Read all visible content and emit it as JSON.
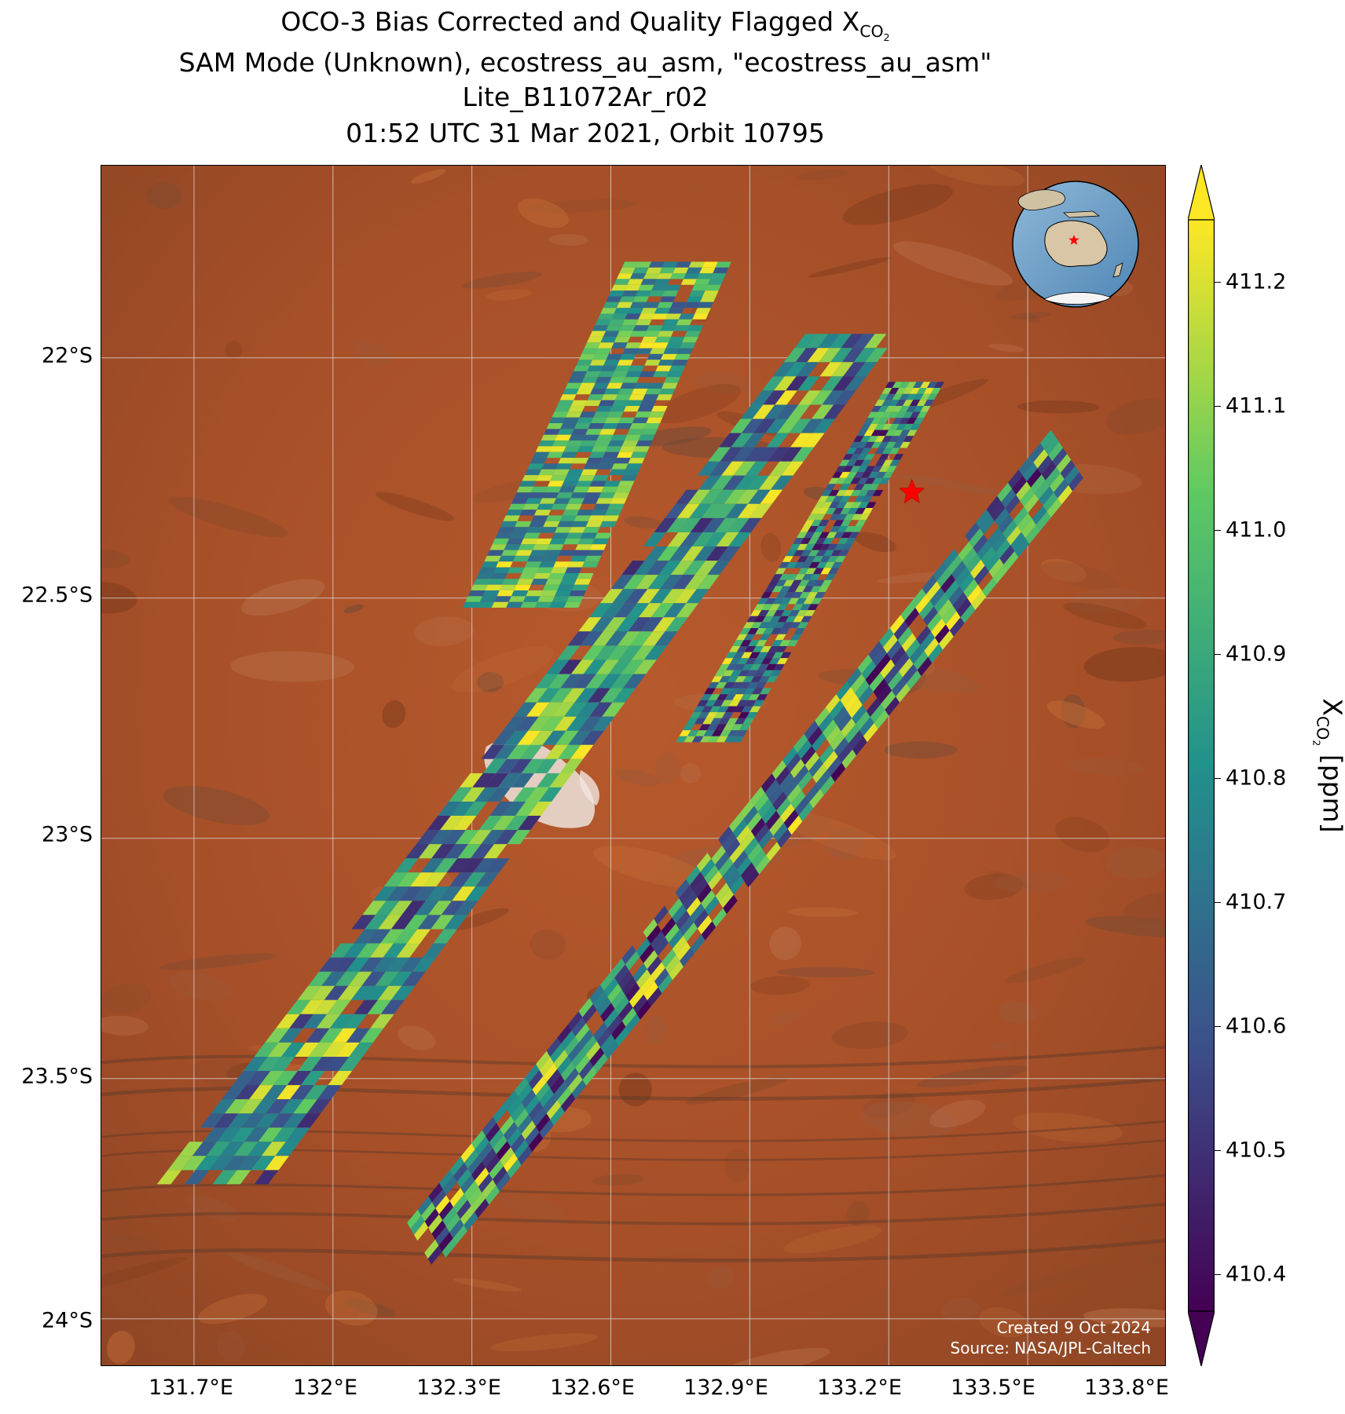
{
  "title": {
    "line1_prefix": "OCO-3 Bias Corrected and Quality Flagged X",
    "line1_sub": "CO",
    "line1_sub2": "2",
    "line2": "SAM Mode (Unknown), ecostress_au_asm, \"ecostress_au_asm\"",
    "line3": "Lite_B11072Ar_r02",
    "line4": "01:52 UTC 31 Mar 2021, Orbit 10795"
  },
  "map": {
    "latitude_ticks": [
      "22°S",
      "22.5°S",
      "23°S",
      "23.5°S",
      "24°S"
    ],
    "longitude_ticks": [
      "131.7°E",
      "132°E",
      "132.3°E",
      "132.6°E",
      "132.9°E",
      "133.2°E",
      "133.5°E",
      "133.8°E"
    ],
    "target_marker": "red star",
    "credit_line1": "Created 9 Oct 2024",
    "credit_line2": "Source: NASA/JPL-Caltech"
  },
  "colorbar": {
    "label_prefix": "X",
    "label_sub": "CO",
    "label_sub2": "2",
    "label_suffix": " [ppm]",
    "ticks": [
      "410.4",
      "410.5",
      "410.6",
      "410.7",
      "410.8",
      "410.9",
      "411.0",
      "411.1",
      "411.2"
    ],
    "colormap": "viridis",
    "extend": "both",
    "colors": [
      "#440154",
      "#3b528b",
      "#21918c",
      "#5ec962",
      "#fde725"
    ]
  },
  "chart_data": {
    "type": "heatmap",
    "title": "OCO-3 Bias Corrected and Quality Flagged XCO2",
    "xlabel": "",
    "ylabel": "",
    "xlim": [
      131.5,
      133.8
    ],
    "ylim": [
      -24.1,
      -21.6
    ],
    "value_range": [
      410.4,
      411.2
    ],
    "units": "ppm",
    "swaths": [
      {
        "name": "swath-1",
        "corners_lonlat": [
          [
            132.63,
            -21.8
          ],
          [
            132.86,
            -21.8
          ],
          [
            132.53,
            -22.52
          ],
          [
            132.28,
            -22.52
          ]
        ],
        "dominant_range": [
          410.6,
          411.2
        ]
      },
      {
        "name": "swath-2",
        "corners_lonlat": [
          [
            133.02,
            -21.95
          ],
          [
            133.22,
            -21.95
          ],
          [
            131.86,
            -23.72
          ],
          [
            131.62,
            -23.72
          ]
        ],
        "dominant_range": [
          410.5,
          411.2
        ]
      },
      {
        "name": "swath-3",
        "corners_lonlat": [
          [
            133.2,
            -22.05
          ],
          [
            133.32,
            -22.05
          ],
          [
            132.88,
            -22.8
          ],
          [
            132.74,
            -22.8
          ]
        ],
        "dominant_range": [
          410.4,
          411.2
        ]
      },
      {
        "name": "swath-4",
        "corners_lonlat": [
          [
            133.55,
            -22.15
          ],
          [
            133.62,
            -22.25
          ],
          [
            132.22,
            -23.9
          ],
          [
            132.16,
            -23.8
          ]
        ],
        "dominant_range": [
          410.4,
          411.2
        ]
      }
    ],
    "target_location": {
      "lon": 133.25,
      "lat": -22.28
    },
    "grid": true
  }
}
